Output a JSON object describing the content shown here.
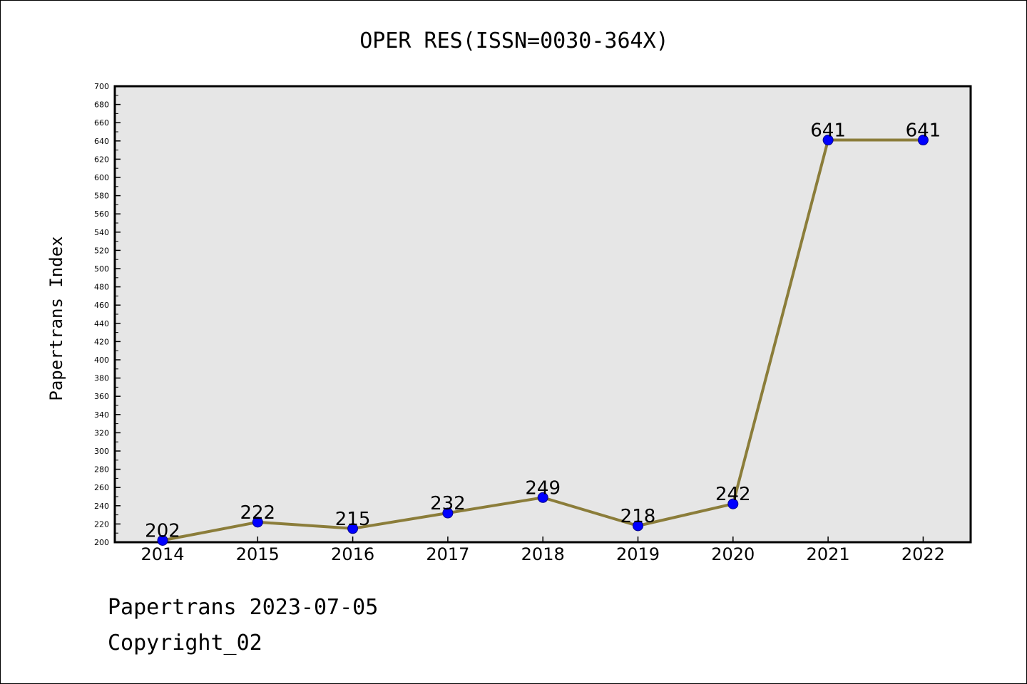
{
  "chart_data": {
    "type": "line",
    "title": "OPER RES(ISSN=0030-364X)",
    "xlabel": "",
    "ylabel": "Papertrans Index",
    "categories": [
      "2014",
      "2015",
      "2016",
      "2017",
      "2018",
      "2019",
      "2020",
      "2021",
      "2022"
    ],
    "series": [
      {
        "values": [
          202,
          222,
          215,
          232,
          249,
          218,
          242,
          641,
          641
        ]
      }
    ],
    "ylim": [
      200,
      700
    ],
    "yticks": [
      200,
      220,
      240,
      260,
      280,
      300,
      320,
      340,
      360,
      380,
      400,
      420,
      440,
      460,
      480,
      500,
      520,
      540,
      560,
      580,
      600,
      620,
      640,
      660,
      680,
      700
    ],
    "grid": false,
    "data_labels": true,
    "colors": {
      "line": "#8B7D3A",
      "marker": "#0000FF",
      "plot_background": "#E6E6E6",
      "axis": "#000000"
    }
  },
  "footer": {
    "line1": "Papertrans 2023-07-05",
    "line2": "Copyright_02"
  }
}
